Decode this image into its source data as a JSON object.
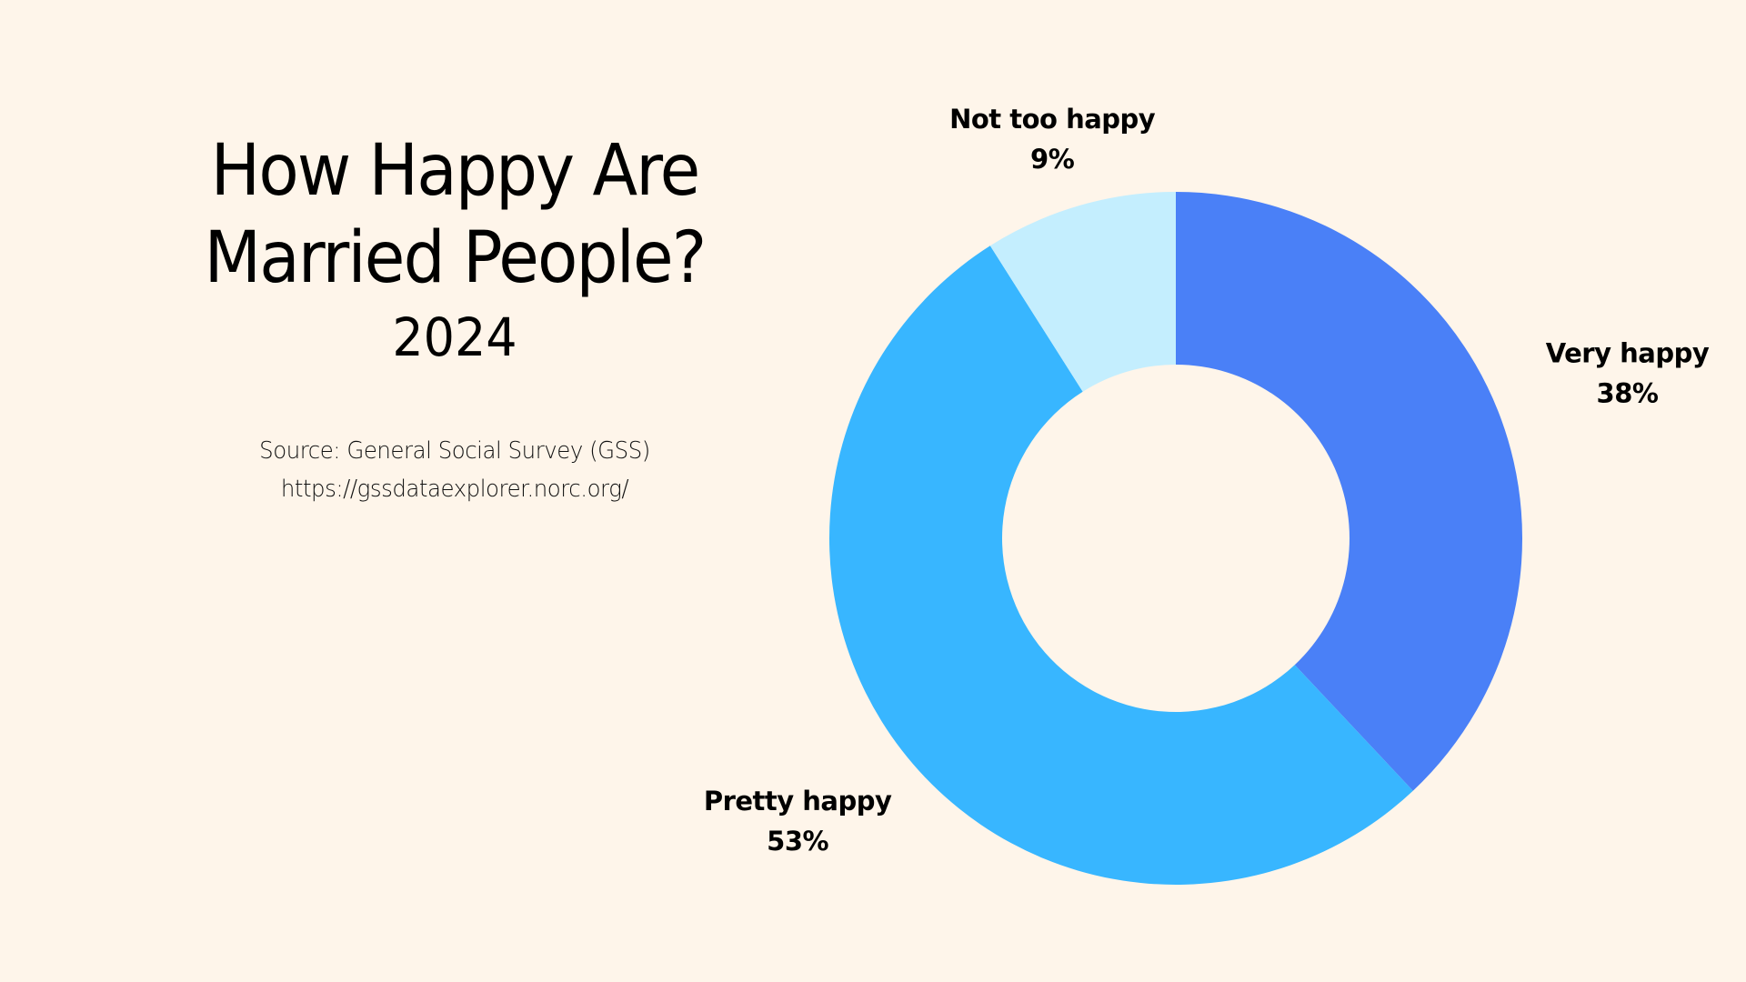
{
  "header": {
    "title_line1": "How Happy Are",
    "title_line2": "Married People?",
    "year": "2024"
  },
  "source": {
    "line1": "Source: General Social Survey (GSS)",
    "line2": "https://gssdataexplorer.norc.org/"
  },
  "background_color": "#FEF5EA",
  "chart_data": {
    "type": "pie",
    "variant": "donut",
    "title": "How Happy Are Married People? 2024",
    "categories": [
      "Very happy",
      "Pretty happy",
      "Not too happy"
    ],
    "values": [
      38,
      53,
      9
    ],
    "unit": "%",
    "labels": [
      "38%",
      "53%",
      "9%"
    ],
    "colors": [
      "#4A80F7",
      "#38B6FF",
      "#C4EEFE"
    ],
    "start_angle_deg": 0,
    "direction": "clockwise",
    "legend": "none",
    "label_placement": "outside"
  }
}
